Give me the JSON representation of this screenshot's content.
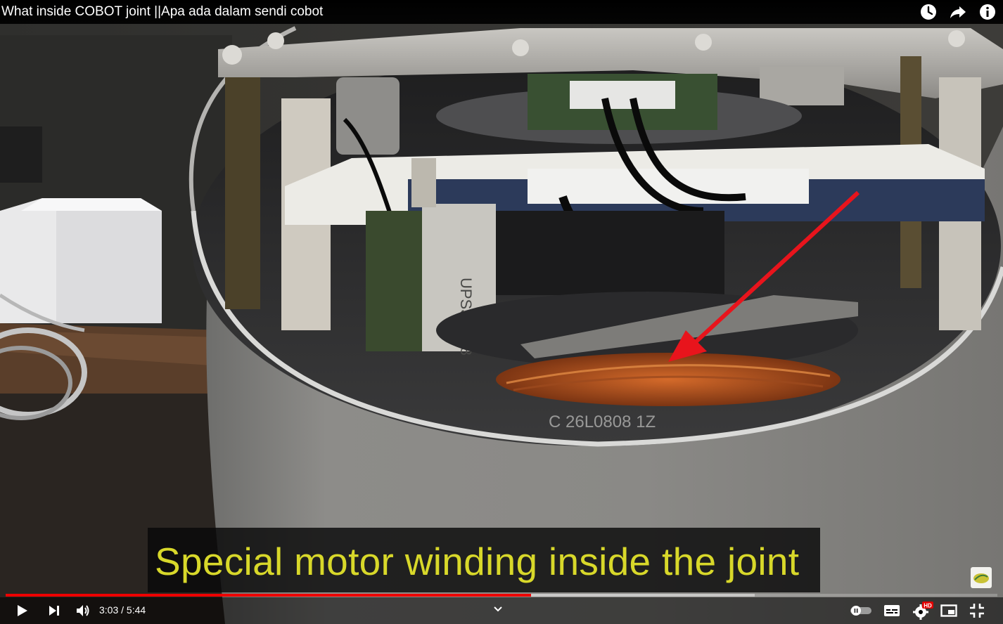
{
  "header": {
    "title": "What inside COBOT joint ||Apa ada dalam sendi cobot",
    "icons": [
      "clock-icon",
      "share-icon",
      "info-icon"
    ]
  },
  "caption": {
    "text": "Special motor winding inside the joint",
    "color": "#d8d82a"
  },
  "playback": {
    "current_time": "3:03",
    "separator": " / ",
    "duration": "5:44",
    "played_fraction": 0.53,
    "buffered_fraction": 0.755
  },
  "controls": {
    "left": [
      "play-icon",
      "next-icon",
      "volume-icon"
    ],
    "right": [
      "autoplay-toggle-icon",
      "subtitles-icon",
      "settings-icon",
      "miniplayer-icon",
      "exit-fullscreen-icon"
    ],
    "hd_badge": "HD"
  },
  "colors": {
    "progress_played": "#ee0000",
    "hd_badge": "#e00000",
    "arrow": "#e8141c"
  }
}
